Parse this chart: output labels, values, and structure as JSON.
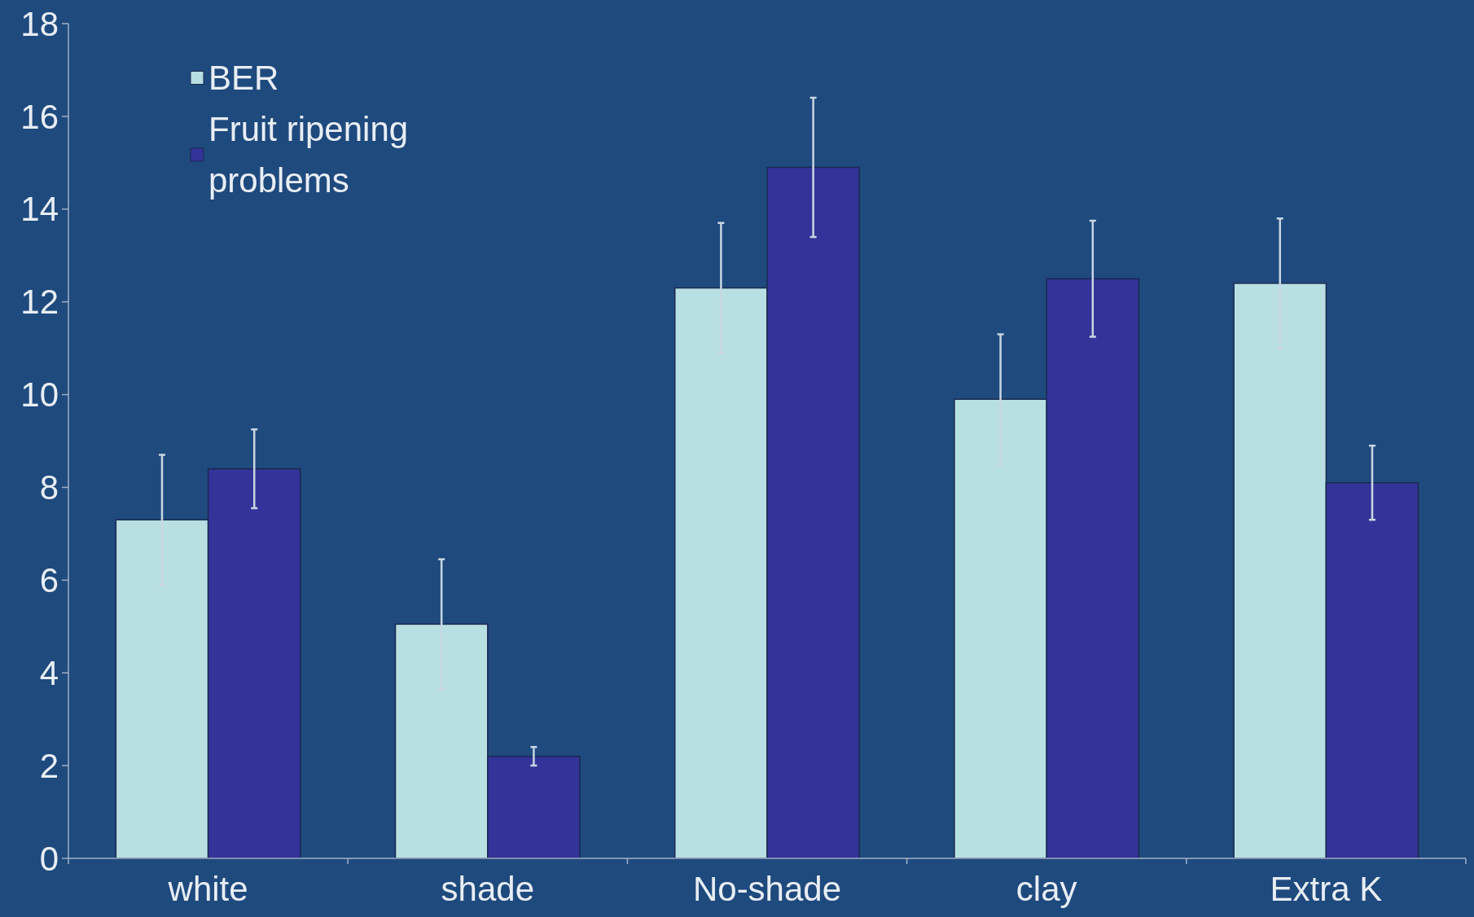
{
  "chart_data": {
    "type": "bar",
    "categories": [
      "white",
      "shade",
      "No-shade",
      "clay",
      "Extra K"
    ],
    "series": [
      {
        "name": "BER",
        "color": "#b8e0e3",
        "values": [
          7.3,
          5.05,
          12.3,
          9.9,
          12.4
        ],
        "errors": [
          1.4,
          1.4,
          1.4,
          1.4,
          1.4
        ]
      },
      {
        "name": "Fruit ripening problems",
        "color": "#333399",
        "values": [
          8.4,
          2.2,
          14.9,
          12.5,
          8.1
        ],
        "errors": [
          0.85,
          0.2,
          1.5,
          1.25,
          0.8
        ]
      }
    ],
    "ylim": [
      0,
      18
    ],
    "yticks": [
      0,
      2,
      4,
      6,
      8,
      10,
      12,
      14,
      16,
      18
    ],
    "grid": false,
    "legend": "top left"
  }
}
